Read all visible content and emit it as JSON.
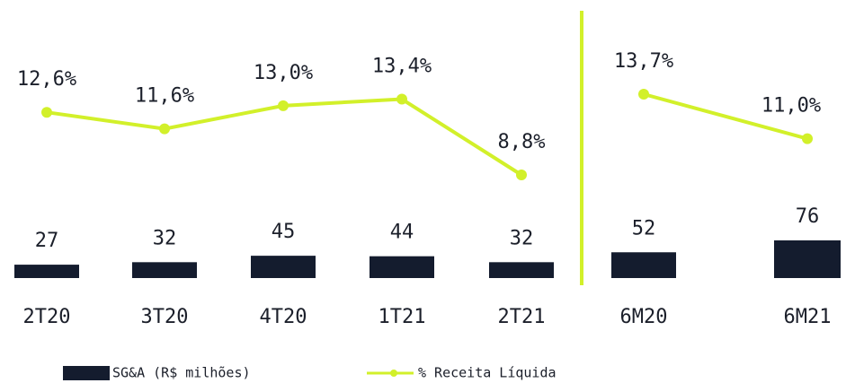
{
  "chart_data": {
    "type": "bar-line",
    "categories": [
      "2T20",
      "3T20",
      "4T20",
      "1T21",
      "2T21",
      "6M20",
      "6M21"
    ],
    "series": [
      {
        "name": "SG&A (R$ milhões)",
        "type": "bar",
        "color": "#141c2e",
        "values": [
          27,
          32,
          45,
          44,
          32,
          52,
          76
        ]
      },
      {
        "name": "% Receita Líquida",
        "type": "line",
        "color": "#d2f02a",
        "values": [
          12.6,
          11.6,
          13.0,
          13.4,
          8.8,
          13.7,
          11.0
        ],
        "value_labels": [
          "12,6%",
          "11,6%",
          "13,0%",
          "13,4%",
          "8,8%",
          "13,7%",
          "11,0%"
        ]
      }
    ]
  }
}
